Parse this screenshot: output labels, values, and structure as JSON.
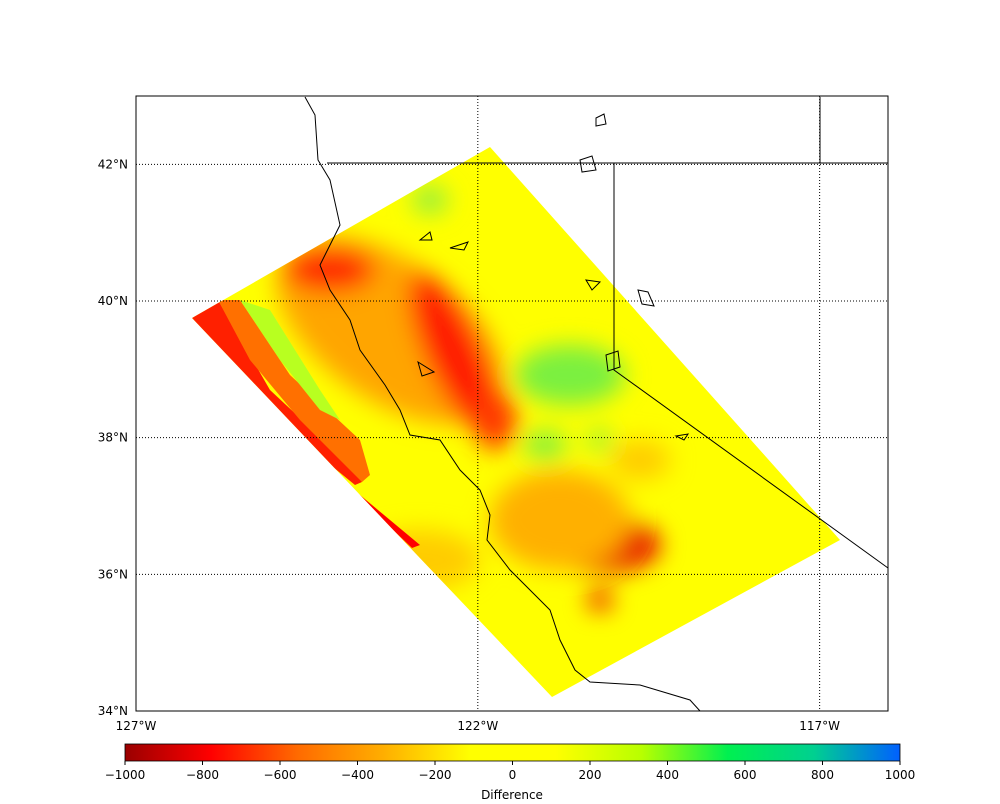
{
  "map": {
    "lonlim": [
      -127,
      -116
    ],
    "latlim": [
      34,
      43
    ],
    "lon_ticks": [
      {
        "value": -127,
        "label": "127°W"
      },
      {
        "value": -122,
        "label": "122°W"
      },
      {
        "value": -117,
        "label": "117°W"
      }
    ],
    "lat_ticks": [
      {
        "value": 34,
        "label": "34°N"
      },
      {
        "value": 36,
        "label": "36°N"
      },
      {
        "value": 38,
        "label": "38°N"
      },
      {
        "value": 40,
        "label": "40°N"
      },
      {
        "value": 42,
        "label": "42°N"
      }
    ],
    "grid": true
  },
  "colorbar": {
    "label": "Difference",
    "lim": [
      -1000,
      1000
    ],
    "colormap": [
      "#9a0000",
      "#ff0000",
      "#ff6a00",
      "#ffae00",
      "#ffff00",
      "#ffff00",
      "#b8ff00",
      "#00f050",
      "#00d090",
      "#0060ff"
    ],
    "ticks": [
      {
        "value": -1000,
        "label": "−1000"
      },
      {
        "value": -800,
        "label": "−800"
      },
      {
        "value": -600,
        "label": "−600"
      },
      {
        "value": -400,
        "label": "−400"
      },
      {
        "value": -200,
        "label": "−200"
      },
      0,
      200,
      400,
      600,
      800,
      1000
    ]
  }
}
